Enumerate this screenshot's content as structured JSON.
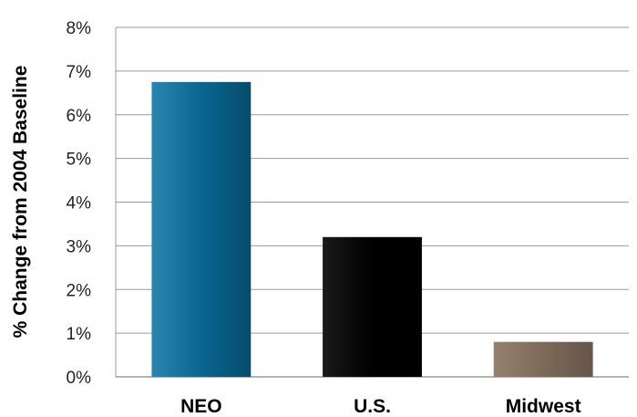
{
  "chart_data": {
    "type": "bar",
    "title": "",
    "xlabel": "",
    "ylabel": "% Change from 2004 Baseline",
    "categories": [
      "NEO",
      "U.S.",
      "Midwest"
    ],
    "values": [
      6.75,
      3.2,
      0.8
    ],
    "ylim": [
      0,
      8
    ],
    "yticks": [
      "0%",
      "1%",
      "2%",
      "3%",
      "4%",
      "5%",
      "6%",
      "7%",
      "8%"
    ],
    "grid": true,
    "legend": "none",
    "colors": [
      "#0a6690",
      "#000000",
      "#7d6a58"
    ]
  }
}
